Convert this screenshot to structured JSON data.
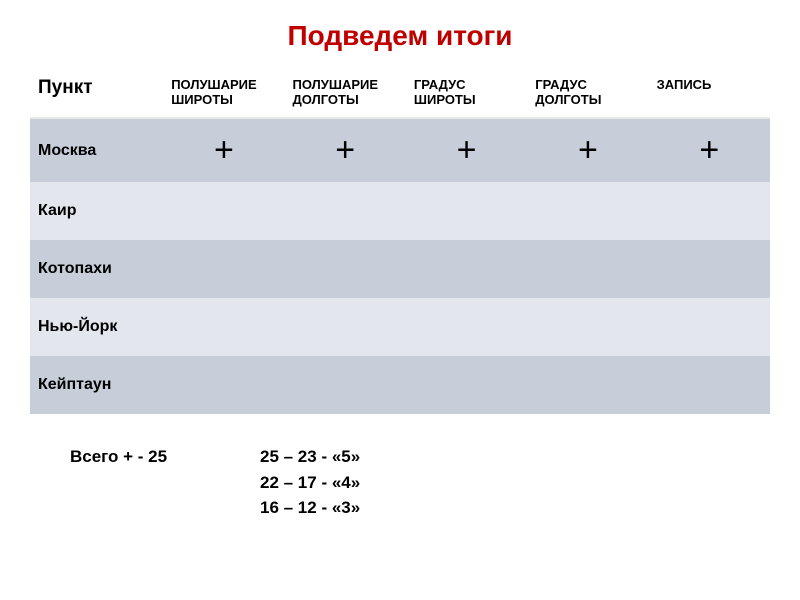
{
  "title": "Подведем итоги",
  "table": {
    "headers": {
      "point": "Пункт",
      "hemLat": "ПОЛУШАРИЕ ШИРОТЫ",
      "hemLon": "ПОЛУШАРИЕ ДОЛГОТЫ",
      "degLat": "ГРАДУС ШИРОТЫ",
      "degLon": "ГРАДУС ДОЛГОТЫ",
      "record": "ЗАПИСЬ"
    },
    "rows": [
      {
        "name": "Москва",
        "c1": "+",
        "c2": "+",
        "c3": "+",
        "c4": "+",
        "c5": "+"
      },
      {
        "name": "Каир",
        "c1": "",
        "c2": "",
        "c3": "",
        "c4": "",
        "c5": ""
      },
      {
        "name": "Котопахи",
        "c1": "",
        "c2": "",
        "c3": "",
        "c4": "",
        "c5": ""
      },
      {
        "name": "Нью-Йорк",
        "c1": "",
        "c2": "",
        "c3": "",
        "c4": "",
        "c5": ""
      },
      {
        "name": "Кейптаун",
        "c1": "",
        "c2": "",
        "c3": "",
        "c4": "",
        "c5": ""
      }
    ],
    "colors": {
      "darkRow": "#c7cdd9",
      "lightRow": "#e3e6ed",
      "titleColor": "#c00000"
    }
  },
  "summary": {
    "line1a": "Всего   +    - 25",
    "line1b": "25 – 23   - «5»",
    "line2": "22 – 17   - «4»",
    "line3": "16 – 12   - «3»"
  }
}
